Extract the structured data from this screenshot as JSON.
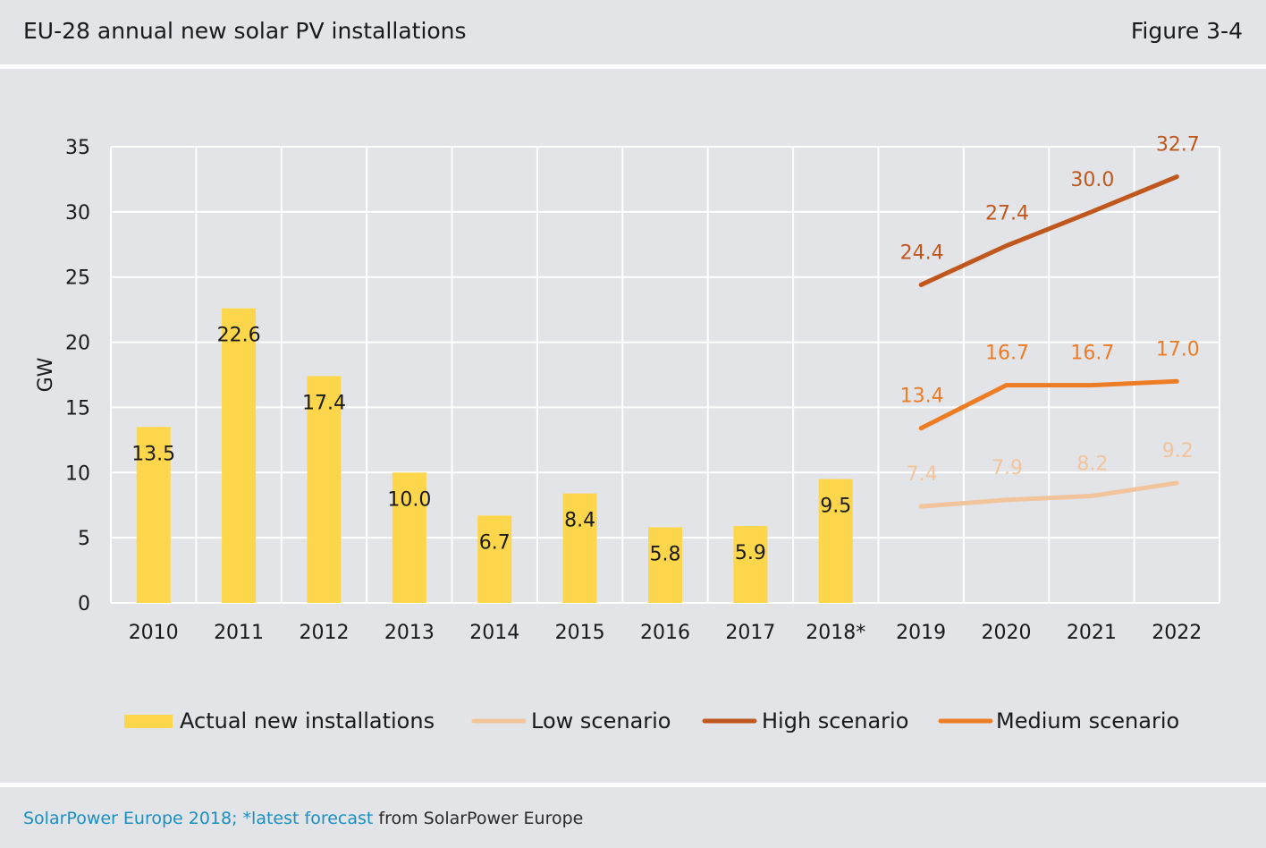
{
  "header": {
    "title": "EU-28 annual new solar PV installations",
    "figure": "Figure 3-4"
  },
  "footer": {
    "source_highlight": "SolarPower Europe 2018; *latest forecast",
    "source_rest": " from SolarPower Europe"
  },
  "colors": {
    "bar": "#fdd64b",
    "low": "#f2c49b",
    "high": "#c0571c",
    "medium": "#ed7d25",
    "grid": "#ffffff",
    "background": "#e3e4e8"
  },
  "chart_data": {
    "type": "bar",
    "categories": [
      "2010",
      "2011",
      "2012",
      "2013",
      "2014",
      "2015",
      "2016",
      "2017",
      "2018*",
      "2019",
      "2020",
      "2021",
      "2022"
    ],
    "ylabel": "GW",
    "ylim": [
      0,
      35
    ],
    "yticks": [
      0,
      5,
      10,
      15,
      20,
      25,
      30,
      35
    ],
    "grid": true,
    "legend_position": "bottom",
    "bars": {
      "name": "Actual new installations",
      "values": [
        13.5,
        22.6,
        17.4,
        10.0,
        6.7,
        8.4,
        5.8,
        5.9,
        9.5,
        null,
        null,
        null,
        null
      ],
      "labels": [
        "13.5",
        "22.6",
        "17.4",
        "10.0",
        "6.7",
        "8.4",
        "5.8",
        "5.9",
        "9.5",
        "",
        "",
        "",
        ""
      ]
    },
    "series": [
      {
        "name": "Low scenario",
        "type": "line",
        "color": "#f2c49b",
        "values": [
          null,
          null,
          null,
          null,
          null,
          null,
          null,
          null,
          null,
          7.4,
          7.9,
          8.2,
          9.2
        ],
        "labels": [
          "",
          "",
          "",
          "",
          "",
          "",
          "",
          "",
          "",
          "7.4",
          "7.9",
          "8.2",
          "9.2"
        ]
      },
      {
        "name": "High scenario",
        "type": "line",
        "color": "#c0571c",
        "values": [
          null,
          null,
          null,
          null,
          null,
          null,
          null,
          null,
          null,
          24.4,
          27.4,
          30.0,
          32.7
        ],
        "labels": [
          "",
          "",
          "",
          "",
          "",
          "",
          "",
          "",
          "",
          "24.4",
          "27.4",
          "30.0",
          "32.7"
        ]
      },
      {
        "name": "Medium scenario",
        "type": "line",
        "color": "#ed7d25",
        "values": [
          null,
          null,
          null,
          null,
          null,
          null,
          null,
          null,
          null,
          13.4,
          16.7,
          16.7,
          17.0
        ],
        "labels": [
          "",
          "",
          "",
          "",
          "",
          "",
          "",
          "",
          "",
          "13.4",
          "16.7",
          "16.7",
          "17.0"
        ]
      }
    ]
  }
}
